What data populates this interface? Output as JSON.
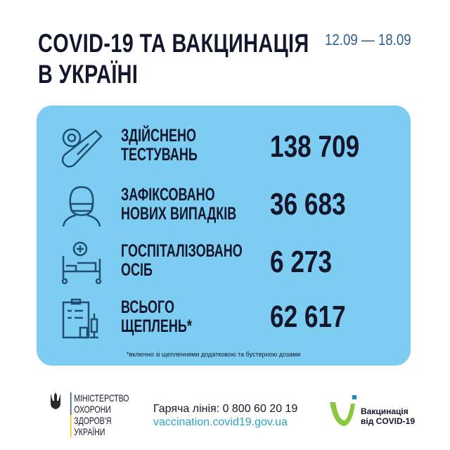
{
  "header": {
    "title_line1": "COVID-19 ТА ВАКЦИНАЦІЯ",
    "title_line2": "В УКРАЇНІ",
    "dates": "12.09 — 18.09"
  },
  "stats": [
    {
      "icon": "test-tube-virus-icon",
      "label1": "ЗДІЙСНЕНО",
      "label2": "ТЕСТУВАНЬ",
      "value": "138 709"
    },
    {
      "icon": "masked-person-icon",
      "label1": "ЗАФІКСОВАНО",
      "label2": "НОВИХ ВИПАДКІВ",
      "value": "36 683"
    },
    {
      "icon": "hospital-bed-icon",
      "label1": "ГОСПІТАЛІЗОВАНО",
      "label2": "ОСІБ",
      "value": "6 273"
    },
    {
      "icon": "clipboard-syringe-icon",
      "label1": "ВСЬОГО",
      "label2": "ЩЕПЛЕНЬ*",
      "value": "62 617"
    }
  ],
  "footnote": "*включно зі щепленнями додатковою та бустерною дозами",
  "footer": {
    "ministry": [
      "МІНІСТЕРСТВО",
      "ОХОРОНИ",
      "ЗДОРОВ'Я",
      "УКРАЇНИ"
    ],
    "hotline": "Гаряча лінія: 0 800 60 20 19",
    "url": "vaccination.covid19.gov.ua",
    "logo_line1": "Вакцинація",
    "logo_line2": "від COVID-19"
  },
  "colors": {
    "card": "#7dcdf3",
    "text": "#14162b",
    "accent": "#2b5e8c",
    "logo_green": "#8cc63f",
    "logo_blue": "#1e88c8"
  }
}
